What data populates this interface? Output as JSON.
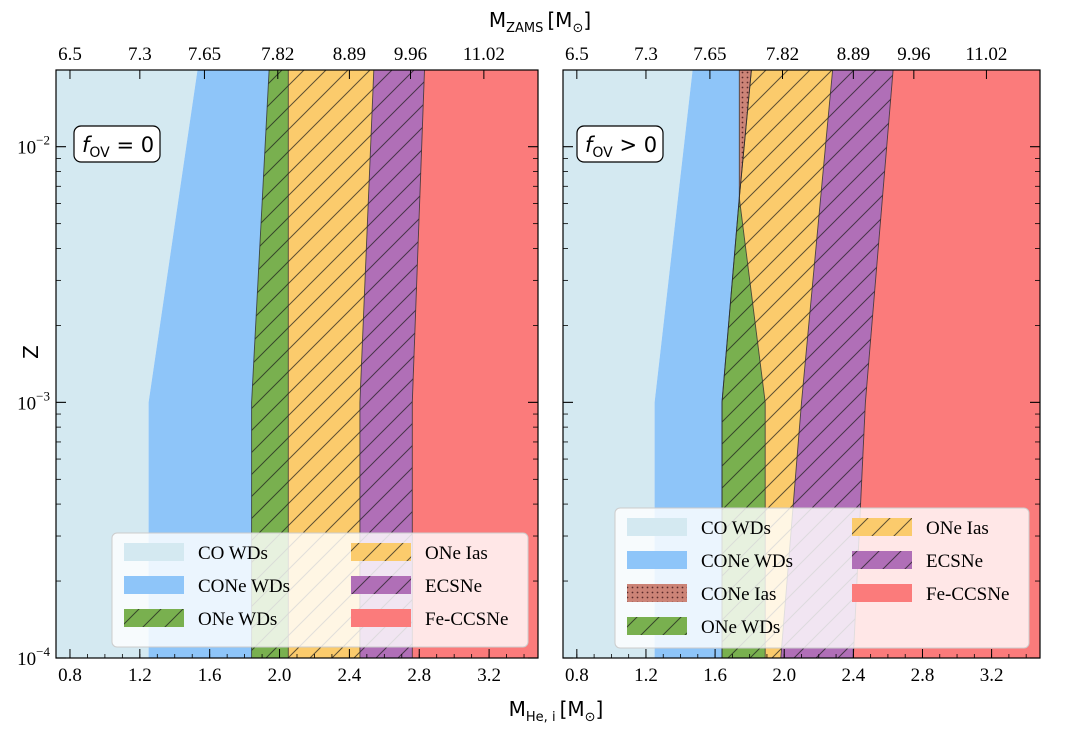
{
  "figure": {
    "top_axis_label_main": "M",
    "top_axis_label_sub": "ZAMS",
    "top_axis_label_unit": "[M",
    "top_axis_label_unit_sub": "⊙",
    "top_axis_label_close": "]",
    "bottom_axis_label_main": "M",
    "bottom_axis_label_sub": "He, i",
    "bottom_axis_label_unit": "[M",
    "bottom_axis_label_unit_sub": "⊙",
    "bottom_axis_label_close": "]",
    "y_axis_label": "Z"
  },
  "colors": {
    "CO WDs": "#d4e9f1",
    "CONe WDs": "#8ec5f9",
    "CONe Ias": "#cc8477",
    "ONe WDs": "#79b04f",
    "ONe Ias": "#fbcb6c",
    "ECSNe": "#b06fb7",
    "Fe-CCSNe": "#fb7b7b"
  },
  "chart_data": [
    {
      "type": "area",
      "panel": "left",
      "annotation_main": "f",
      "annotation_sub": "OV",
      "annotation_rest": " = 0",
      "xlabel": "M_He,i [M_sun]",
      "ylabel": "Z",
      "xlim": [
        0.72,
        3.48
      ],
      "ylim_log10": [
        -4,
        -1.7
      ],
      "yscale": "log",
      "x_ticks": [
        "0.8",
        "1.2",
        "1.6",
        "2.0",
        "2.4",
        "2.8",
        "3.2"
      ],
      "top_ticks": [
        "6.5",
        "7.3",
        "7.65",
        "7.82",
        "8.89",
        "9.96",
        "11.02"
      ],
      "top_tick_positions": [
        0.8,
        1.2,
        1.57,
        1.99,
        2.4,
        2.75,
        3.17
      ],
      "y_ticks": [
        {
          "value": -2,
          "label_base": "10",
          "label_exp": "−2"
        },
        {
          "value": -3,
          "label_base": "10",
          "label_exp": "−3"
        },
        {
          "value": -4,
          "label_base": "10",
          "label_exp": "−4"
        }
      ],
      "boundaries": [
        {
          "name": "CO WDs|CONe WDs",
          "points": [
            [
              1.25,
              -4
            ],
            [
              1.25,
              -3
            ],
            [
              1.53,
              -1.7
            ]
          ]
        },
        {
          "name": "CONe WDs|ONe WDs",
          "points": [
            [
              1.84,
              -4
            ],
            [
              1.84,
              -3
            ],
            [
              1.94,
              -1.7
            ]
          ]
        },
        {
          "name": "ONe WDs|ONe Ias",
          "points": [
            [
              2.05,
              -4
            ],
            [
              2.05,
              -3
            ],
            [
              2.05,
              -1.7
            ]
          ]
        },
        {
          "name": "ONe Ias|ECSNe",
          "points": [
            [
              2.46,
              -4
            ],
            [
              2.46,
              -3
            ],
            [
              2.54,
              -1.7
            ]
          ]
        },
        {
          "name": "ECSNe|Fe-CCSNe",
          "points": [
            [
              2.76,
              -4
            ],
            [
              2.76,
              -3
            ],
            [
              2.83,
              -1.7
            ]
          ]
        }
      ],
      "regions": [
        {
          "name": "CO WDs",
          "hatch": "none"
        },
        {
          "name": "CONe WDs",
          "hatch": "none"
        },
        {
          "name": "ONe WDs",
          "hatch": "diag"
        },
        {
          "name": "ONe Ias",
          "hatch": "diag"
        },
        {
          "name": "ECSNe",
          "hatch": "diag"
        },
        {
          "name": "Fe-CCSNe",
          "hatch": "none"
        }
      ],
      "legend": {
        "placement": "lower-center",
        "columns": [
          [
            "CO WDs",
            "CONe WDs",
            "ONe WDs"
          ],
          [
            "ONe Ias",
            "ECSNe",
            "Fe-CCSNe"
          ]
        ]
      }
    },
    {
      "type": "area",
      "panel": "right",
      "annotation_main": "f",
      "annotation_sub": "OV",
      "annotation_rest": " > 0",
      "xlabel": "M_He,i [M_sun]",
      "ylabel": "Z",
      "xlim": [
        0.72,
        3.48
      ],
      "ylim_log10": [
        -4,
        -1.7
      ],
      "yscale": "log",
      "x_ticks": [
        "0.8",
        "1.2",
        "1.6",
        "2.0",
        "2.4",
        "2.8",
        "3.2"
      ],
      "top_ticks": [
        "6.5",
        "7.3",
        "7.65",
        "7.82",
        "8.89",
        "9.96",
        "11.02"
      ],
      "top_tick_positions": [
        0.8,
        1.2,
        1.57,
        1.99,
        2.4,
        2.75,
        3.17
      ],
      "y_ticks": [
        {
          "value": -2,
          "label_base": "10",
          "label_exp": "−2"
        },
        {
          "value": -3,
          "label_base": "10",
          "label_exp": "−3"
        },
        {
          "value": -4,
          "label_base": "10",
          "label_exp": "−4"
        }
      ],
      "boundaries": [
        {
          "name": "CO WDs|CONe WDs",
          "points": [
            [
              1.25,
              -4
            ],
            [
              1.25,
              -3
            ],
            [
              1.47,
              -1.7
            ]
          ]
        },
        {
          "name": "CONe WDs|CONe Ias",
          "points": [
            [
              1.64,
              -4
            ],
            [
              1.64,
              -3
            ],
            [
              1.74,
              -2.2
            ],
            [
              1.74,
              -1.7
            ]
          ]
        },
        {
          "name": "CONe Ias|ONe WDs",
          "points": [
            [
              1.64,
              -4
            ],
            [
              1.64,
              -3
            ],
            [
              1.74,
              -2.2
            ],
            [
              1.81,
              -1.7
            ]
          ]
        },
        {
          "name": "ONe WDs|ONe Ias",
          "points": [
            [
              1.89,
              -4
            ],
            [
              1.89,
              -3
            ],
            [
              1.74,
              -2.2
            ],
            [
              1.81,
              -1.7
            ]
          ]
        },
        {
          "name": "ONe Ias|ECSNe",
          "points": [
            [
              1.98,
              -4
            ],
            [
              2.1,
              -3
            ],
            [
              2.28,
              -1.7
            ]
          ]
        },
        {
          "name": "ECSNe|Fe-CCSNe",
          "points": [
            [
              2.4,
              -4
            ],
            [
              2.47,
              -3
            ],
            [
              2.63,
              -1.7
            ]
          ]
        }
      ],
      "regions": [
        {
          "name": "CO WDs",
          "hatch": "none"
        },
        {
          "name": "CONe WDs",
          "hatch": "none"
        },
        {
          "name": "CONe Ias",
          "hatch": "dots"
        },
        {
          "name": "ONe WDs",
          "hatch": "diag"
        },
        {
          "name": "ONe Ias",
          "hatch": "diag"
        },
        {
          "name": "ECSNe",
          "hatch": "diag"
        },
        {
          "name": "Fe-CCSNe",
          "hatch": "none"
        }
      ],
      "legend": {
        "placement": "lower-right",
        "columns": [
          [
            "CO WDs",
            "CONe WDs",
            "CONe Ias",
            "ONe WDs"
          ],
          [
            "ONe Ias",
            "ECSNe",
            "Fe-CCSNe"
          ]
        ]
      }
    }
  ]
}
